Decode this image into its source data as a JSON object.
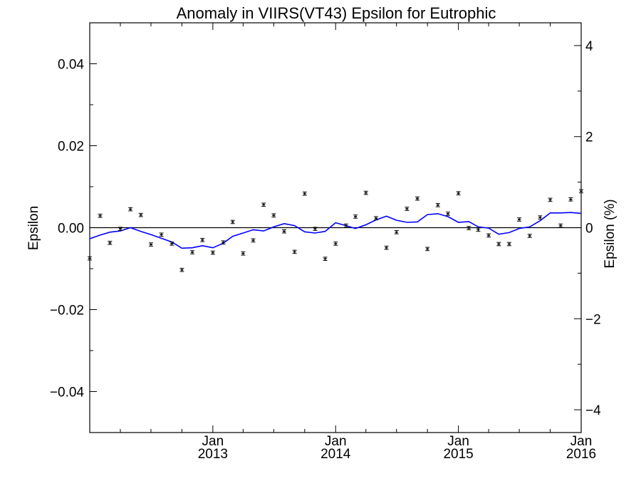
{
  "chart_data": {
    "type": "scatter",
    "title": "Anomaly in VIIRS(VT43) Epsilon for Eutrophic",
    "ylabel": "Epsilon",
    "ylabel_right": "Epsilon (%)",
    "xlim": [
      "2012-01-01",
      "2016-01-01"
    ],
    "ylim": [
      -0.05,
      0.05
    ],
    "ylim_right": [
      -4.5,
      4.5
    ],
    "x_ticks": [
      {
        "date": "2013-01-01",
        "month": "Jan",
        "year": "2013"
      },
      {
        "date": "2014-01-01",
        "month": "Jan",
        "year": "2014"
      },
      {
        "date": "2015-01-01",
        "month": "Jan",
        "year": "2015"
      },
      {
        "date": "2016-01-01",
        "month": "Jan",
        "year": "2016"
      }
    ],
    "y_ticks": [
      "0.04",
      "0.02",
      "0.00",
      "−0.02",
      "−0.04"
    ],
    "y_tick_values": [
      0.04,
      0.02,
      0.0,
      -0.02,
      -0.04
    ],
    "y_ticks_right": [
      "4",
      "2",
      "0",
      "−2",
      "−4"
    ],
    "y_tick_values_right": [
      4,
      2,
      0,
      -2,
      -4
    ],
    "zero_line": true,
    "grid": false,
    "legend": "none",
    "colors": {
      "points": "#000000",
      "line": "#0000ff",
      "axes": "#000000"
    },
    "series": [
      {
        "type": "scatter_errorbar",
        "points": [
          {
            "x": "2012-01-01",
            "y": -0.0075
          },
          {
            "x": "2012-02-01",
            "y": 0.0029
          },
          {
            "x": "2012-03-01",
            "y": -0.0037
          },
          {
            "x": "2012-04-01",
            "y": -0.0003
          },
          {
            "x": "2012-05-01",
            "y": 0.0045
          },
          {
            "x": "2012-06-01",
            "y": 0.0031
          },
          {
            "x": "2012-07-01",
            "y": -0.0041
          },
          {
            "x": "2012-08-01",
            "y": -0.0017
          },
          {
            "x": "2012-09-01",
            "y": -0.0039
          },
          {
            "x": "2012-10-01",
            "y": -0.0103
          },
          {
            "x": "2012-11-01",
            "y": -0.006
          },
          {
            "x": "2012-12-01",
            "y": -0.003
          },
          {
            "x": "2013-01-01",
            "y": -0.0061
          },
          {
            "x": "2013-02-01",
            "y": -0.0036
          },
          {
            "x": "2013-03-01",
            "y": 0.0014
          },
          {
            "x": "2013-04-01",
            "y": -0.0063
          },
          {
            "x": "2013-05-01",
            "y": -0.0031
          },
          {
            "x": "2013-06-01",
            "y": 0.0056
          },
          {
            "x": "2013-07-01",
            "y": 0.003
          },
          {
            "x": "2013-08-01",
            "y": -0.0009
          },
          {
            "x": "2013-09-01",
            "y": -0.0059
          },
          {
            "x": "2013-10-01",
            "y": 0.0083
          },
          {
            "x": "2013-11-01",
            "y": -0.0003
          },
          {
            "x": "2013-12-01",
            "y": -0.0076
          },
          {
            "x": "2014-01-01",
            "y": -0.0039
          },
          {
            "x": "2014-02-01",
            "y": 0.0005
          },
          {
            "x": "2014-03-01",
            "y": 0.0027
          },
          {
            "x": "2014-04-01",
            "y": 0.0085
          },
          {
            "x": "2014-05-01",
            "y": 0.0023
          },
          {
            "x": "2014-06-01",
            "y": -0.0049
          },
          {
            "x": "2014-07-01",
            "y": -0.0011
          },
          {
            "x": "2014-08-01",
            "y": 0.0046
          },
          {
            "x": "2014-09-01",
            "y": 0.0071
          },
          {
            "x": "2014-10-01",
            "y": -0.0052
          },
          {
            "x": "2014-11-01",
            "y": 0.0055
          },
          {
            "x": "2014-12-01",
            "y": 0.0034
          },
          {
            "x": "2015-01-01",
            "y": 0.0084
          },
          {
            "x": "2015-02-01",
            "y": -0.0001
          },
          {
            "x": "2015-03-01",
            "y": -0.0005
          },
          {
            "x": "2015-04-01",
            "y": -0.0019
          },
          {
            "x": "2015-05-01",
            "y": -0.004
          },
          {
            "x": "2015-06-01",
            "y": -0.004
          },
          {
            "x": "2015-07-01",
            "y": 0.002
          },
          {
            "x": "2015-08-01",
            "y": -0.002
          },
          {
            "x": "2015-09-01",
            "y": 0.0025
          },
          {
            "x": "2015-10-01",
            "y": 0.0068
          },
          {
            "x": "2015-11-01",
            "y": 0.0005
          },
          {
            "x": "2015-12-01",
            "y": 0.0069
          },
          {
            "x": "2016-01-01",
            "y": 0.0089
          }
        ],
        "error": 0.0004
      },
      {
        "type": "line",
        "points": [
          {
            "x": "2012-01-01",
            "y": -0.0027
          },
          {
            "x": "2012-02-01",
            "y": -0.0018
          },
          {
            "x": "2012-03-01",
            "y": -0.0011
          },
          {
            "x": "2012-04-01",
            "y": -0.0008
          },
          {
            "x": "2012-05-01",
            "y": 0.0
          },
          {
            "x": "2012-06-01",
            "y": -0.0009
          },
          {
            "x": "2012-07-01",
            "y": -0.0017
          },
          {
            "x": "2012-08-01",
            "y": -0.0026
          },
          {
            "x": "2012-09-01",
            "y": -0.0035
          },
          {
            "x": "2012-10-01",
            "y": -0.005
          },
          {
            "x": "2012-11-01",
            "y": -0.0049
          },
          {
            "x": "2012-12-01",
            "y": -0.0044
          },
          {
            "x": "2013-01-01",
            "y": -0.0049
          },
          {
            "x": "2013-02-01",
            "y": -0.0038
          },
          {
            "x": "2013-03-01",
            "y": -0.0021
          },
          {
            "x": "2013-04-01",
            "y": -0.0013
          },
          {
            "x": "2013-05-01",
            "y": -0.0005
          },
          {
            "x": "2013-06-01",
            "y": -0.0008
          },
          {
            "x": "2013-07-01",
            "y": 0.0002
          },
          {
            "x": "2013-08-01",
            "y": 0.001
          },
          {
            "x": "2013-09-01",
            "y": 0.0005
          },
          {
            "x": "2013-10-01",
            "y": -0.001
          },
          {
            "x": "2013-11-01",
            "y": -0.0013
          },
          {
            "x": "2013-12-01",
            "y": -0.0009
          },
          {
            "x": "2014-01-01",
            "y": 0.0012
          },
          {
            "x": "2014-02-01",
            "y": 0.0005
          },
          {
            "x": "2014-03-01",
            "y": -0.0002
          },
          {
            "x": "2014-04-01",
            "y": 0.0007
          },
          {
            "x": "2014-05-01",
            "y": 0.0019
          },
          {
            "x": "2014-06-01",
            "y": 0.0028
          },
          {
            "x": "2014-07-01",
            "y": 0.0018
          },
          {
            "x": "2014-08-01",
            "y": 0.0013
          },
          {
            "x": "2014-09-01",
            "y": 0.0014
          },
          {
            "x": "2014-10-01",
            "y": 0.0032
          },
          {
            "x": "2014-11-01",
            "y": 0.0034
          },
          {
            "x": "2014-12-01",
            "y": 0.0027
          },
          {
            "x": "2015-01-01",
            "y": 0.0013
          },
          {
            "x": "2015-02-01",
            "y": 0.0015
          },
          {
            "x": "2015-03-01",
            "y": 0.0002
          },
          {
            "x": "2015-04-01",
            "y": -0.0001
          },
          {
            "x": "2015-05-01",
            "y": -0.0016
          },
          {
            "x": "2015-06-01",
            "y": -0.0012
          },
          {
            "x": "2015-07-01",
            "y": -0.0002
          },
          {
            "x": "2015-08-01",
            "y": 0.0002
          },
          {
            "x": "2015-09-01",
            "y": 0.0017
          },
          {
            "x": "2015-10-01",
            "y": 0.0036
          },
          {
            "x": "2015-11-01",
            "y": 0.0036
          },
          {
            "x": "2015-12-01",
            "y": 0.0037
          },
          {
            "x": "2016-01-01",
            "y": 0.0035
          }
        ]
      }
    ]
  }
}
